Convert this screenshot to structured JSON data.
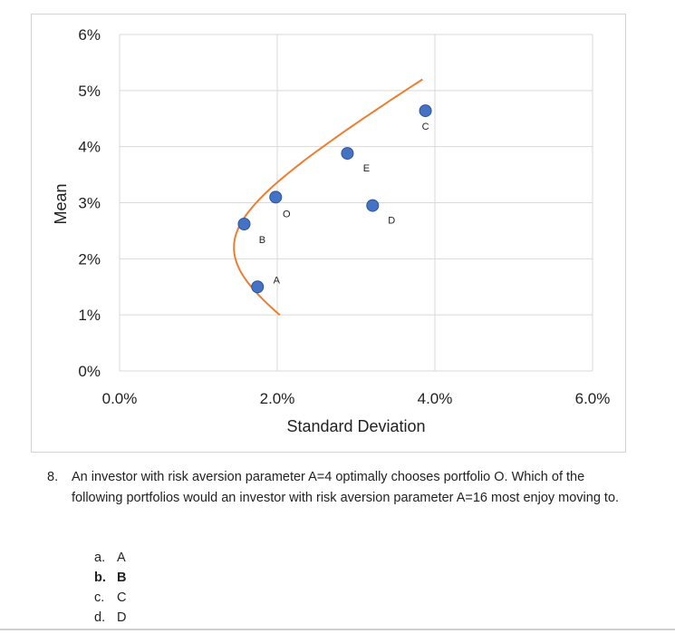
{
  "chart_data": {
    "type": "scatter",
    "xlabel": "Standard Deviation",
    "ylabel": "Mean",
    "xlim": [
      0,
      0.06
    ],
    "ylim": [
      0,
      0.06
    ],
    "x_ticks": [
      "0.0%",
      "2.0%",
      "4.0%",
      "6.0%"
    ],
    "y_ticks": [
      "0%",
      "1%",
      "2%",
      "3%",
      "4%",
      "5%",
      "6%"
    ],
    "grid": true,
    "frontier_color": "#ED7D31",
    "point_color": "#4472C4",
    "frontier": {
      "min_sd": 0.0145,
      "min_mean": 0.022,
      "curvature": 0.00135,
      "mean_range": [
        0.01,
        0.052
      ]
    },
    "points": [
      {
        "label": "A",
        "x": 0.0175,
        "y": 0.015
      },
      {
        "label": "B",
        "x": 0.0158,
        "y": 0.0262
      },
      {
        "label": "O",
        "x": 0.0198,
        "y": 0.031
      },
      {
        "label": "E",
        "x": 0.0289,
        "y": 0.0388
      },
      {
        "label": "D",
        "x": 0.0321,
        "y": 0.0295
      },
      {
        "label": "C",
        "x": 0.0388,
        "y": 0.0464
      }
    ]
  },
  "question": {
    "number": "8.",
    "text": "An investor with risk aversion parameter A=4 optimally chooses portfolio O.  Which of the following portfolios would an investor with risk aversion parameter A=16 most enjoy moving to."
  },
  "options": [
    {
      "letter": "a.",
      "text": "A",
      "bold": false
    },
    {
      "letter": "b.",
      "text": "B",
      "bold": true
    },
    {
      "letter": "c.",
      "text": "C",
      "bold": false
    },
    {
      "letter": "d.",
      "text": "D",
      "bold": false
    }
  ]
}
